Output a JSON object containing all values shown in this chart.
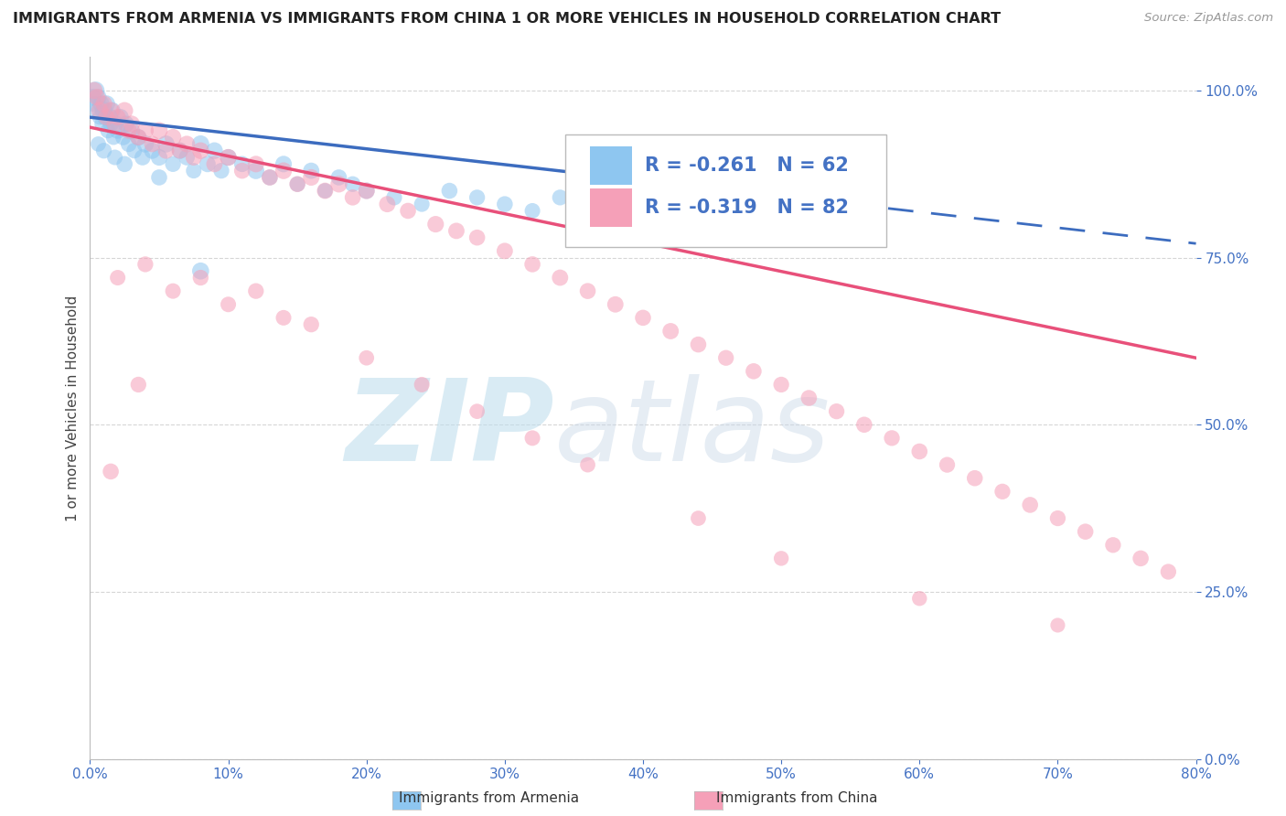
{
  "title": "IMMIGRANTS FROM ARMENIA VS IMMIGRANTS FROM CHINA 1 OR MORE VEHICLES IN HOUSEHOLD CORRELATION CHART",
  "source": "Source: ZipAtlas.com",
  "ylabel": "1 or more Vehicles in Household",
  "xlabel_legend_armenia": "Immigrants from Armenia",
  "xlabel_legend_china": "Immigrants from China",
  "r_armenia": -0.261,
  "n_armenia": 62,
  "r_china": -0.319,
  "n_china": 82,
  "color_armenia": "#8EC6F0",
  "color_china": "#F5A0B8",
  "color_armenia_line": "#3C6CBF",
  "color_china_line": "#E8507A",
  "xmin": 0.0,
  "xmax": 0.8,
  "ymin": 0.0,
  "ymax": 1.05,
  "arm_line_y0": 0.96,
  "arm_line_y1": 0.875,
  "arm_solid_xend": 0.36,
  "china_line_y0": 0.945,
  "china_line_y1": 0.6,
  "watermark_zip": "ZIP",
  "watermark_atlas": "atlas",
  "grid_color": "#CCCCCC",
  "tick_color": "#4472C4",
  "background_color": "#FFFFFF",
  "armenia_x": [
    0.002,
    0.003,
    0.004,
    0.005,
    0.006,
    0.007,
    0.008,
    0.009,
    0.01,
    0.011,
    0.012,
    0.013,
    0.014,
    0.015,
    0.016,
    0.017,
    0.018,
    0.02,
    0.022,
    0.024,
    0.026,
    0.028,
    0.03,
    0.032,
    0.035,
    0.038,
    0.04,
    0.045,
    0.05,
    0.055,
    0.06,
    0.065,
    0.07,
    0.075,
    0.08,
    0.085,
    0.09,
    0.095,
    0.1,
    0.11,
    0.12,
    0.13,
    0.14,
    0.15,
    0.16,
    0.17,
    0.18,
    0.19,
    0.2,
    0.22,
    0.24,
    0.26,
    0.28,
    0.3,
    0.32,
    0.34,
    0.006,
    0.01,
    0.018,
    0.025,
    0.05,
    0.08
  ],
  "armenia_y": [
    0.99,
    0.98,
    1.0,
    0.97,
    0.99,
    0.96,
    0.98,
    0.95,
    0.97,
    0.96,
    0.98,
    0.94,
    0.96,
    0.95,
    0.97,
    0.93,
    0.95,
    0.94,
    0.96,
    0.93,
    0.95,
    0.92,
    0.94,
    0.91,
    0.93,
    0.9,
    0.92,
    0.91,
    0.9,
    0.92,
    0.89,
    0.91,
    0.9,
    0.88,
    0.92,
    0.89,
    0.91,
    0.88,
    0.9,
    0.89,
    0.88,
    0.87,
    0.89,
    0.86,
    0.88,
    0.85,
    0.87,
    0.86,
    0.85,
    0.84,
    0.83,
    0.85,
    0.84,
    0.83,
    0.82,
    0.84,
    0.92,
    0.91,
    0.9,
    0.89,
    0.87,
    0.73
  ],
  "armenia_size": [
    180,
    160,
    200,
    150,
    170,
    140,
    180,
    160,
    200,
    170,
    180,
    150,
    190,
    160,
    175,
    145,
    185,
    165,
    175,
    155,
    170,
    160,
    180,
    150,
    170,
    160,
    180,
    165,
    170,
    180,
    155,
    170,
    160,
    150,
    185,
    165,
    175,
    155,
    170,
    160,
    175,
    155,
    170,
    150,
    165,
    145,
    160,
    155,
    165,
    155,
    150,
    160,
    155,
    160,
    150,
    155,
    145,
    155,
    150,
    160,
    160,
    180
  ],
  "china_x": [
    0.003,
    0.005,
    0.007,
    0.01,
    0.012,
    0.015,
    0.018,
    0.02,
    0.025,
    0.028,
    0.03,
    0.035,
    0.04,
    0.045,
    0.05,
    0.055,
    0.06,
    0.065,
    0.07,
    0.075,
    0.08,
    0.09,
    0.1,
    0.11,
    0.12,
    0.13,
    0.14,
    0.15,
    0.16,
    0.17,
    0.18,
    0.19,
    0.2,
    0.215,
    0.23,
    0.25,
    0.265,
    0.28,
    0.3,
    0.32,
    0.34,
    0.36,
    0.38,
    0.4,
    0.42,
    0.44,
    0.46,
    0.48,
    0.5,
    0.52,
    0.54,
    0.56,
    0.58,
    0.6,
    0.62,
    0.64,
    0.66,
    0.68,
    0.7,
    0.72,
    0.74,
    0.76,
    0.78,
    0.02,
    0.04,
    0.06,
    0.08,
    0.1,
    0.12,
    0.14,
    0.16,
    0.2,
    0.24,
    0.28,
    0.32,
    0.36,
    0.44,
    0.5,
    0.6,
    0.7,
    0.015,
    0.035
  ],
  "china_y": [
    1.0,
    0.99,
    0.97,
    0.98,
    0.96,
    0.97,
    0.95,
    0.96,
    0.97,
    0.94,
    0.95,
    0.93,
    0.94,
    0.92,
    0.94,
    0.91,
    0.93,
    0.91,
    0.92,
    0.9,
    0.91,
    0.89,
    0.9,
    0.88,
    0.89,
    0.87,
    0.88,
    0.86,
    0.87,
    0.85,
    0.86,
    0.84,
    0.85,
    0.83,
    0.82,
    0.8,
    0.79,
    0.78,
    0.76,
    0.74,
    0.72,
    0.7,
    0.68,
    0.66,
    0.64,
    0.62,
    0.6,
    0.58,
    0.56,
    0.54,
    0.52,
    0.5,
    0.48,
    0.46,
    0.44,
    0.42,
    0.4,
    0.38,
    0.36,
    0.34,
    0.32,
    0.3,
    0.28,
    0.72,
    0.74,
    0.7,
    0.72,
    0.68,
    0.7,
    0.66,
    0.65,
    0.6,
    0.56,
    0.52,
    0.48,
    0.44,
    0.36,
    0.3,
    0.24,
    0.2,
    0.43,
    0.56
  ],
  "china_size": [
    180,
    170,
    185,
    175,
    165,
    180,
    170,
    165,
    180,
    165,
    175,
    165,
    175,
    165,
    180,
    165,
    175,
    160,
    170,
    165,
    175,
    165,
    175,
    160,
    170,
    165,
    175,
    160,
    170,
    165,
    175,
    160,
    170,
    165,
    160,
    170,
    165,
    160,
    165,
    160,
    165,
    160,
    165,
    160,
    165,
    160,
    155,
    160,
    155,
    160,
    155,
    160,
    155,
    160,
    155,
    160,
    155,
    160,
    155,
    160,
    155,
    160,
    155,
    150,
    155,
    150,
    155,
    150,
    155,
    150,
    155,
    145,
    150,
    145,
    150,
    145,
    145,
    140,
    140,
    135,
    160,
    155
  ]
}
